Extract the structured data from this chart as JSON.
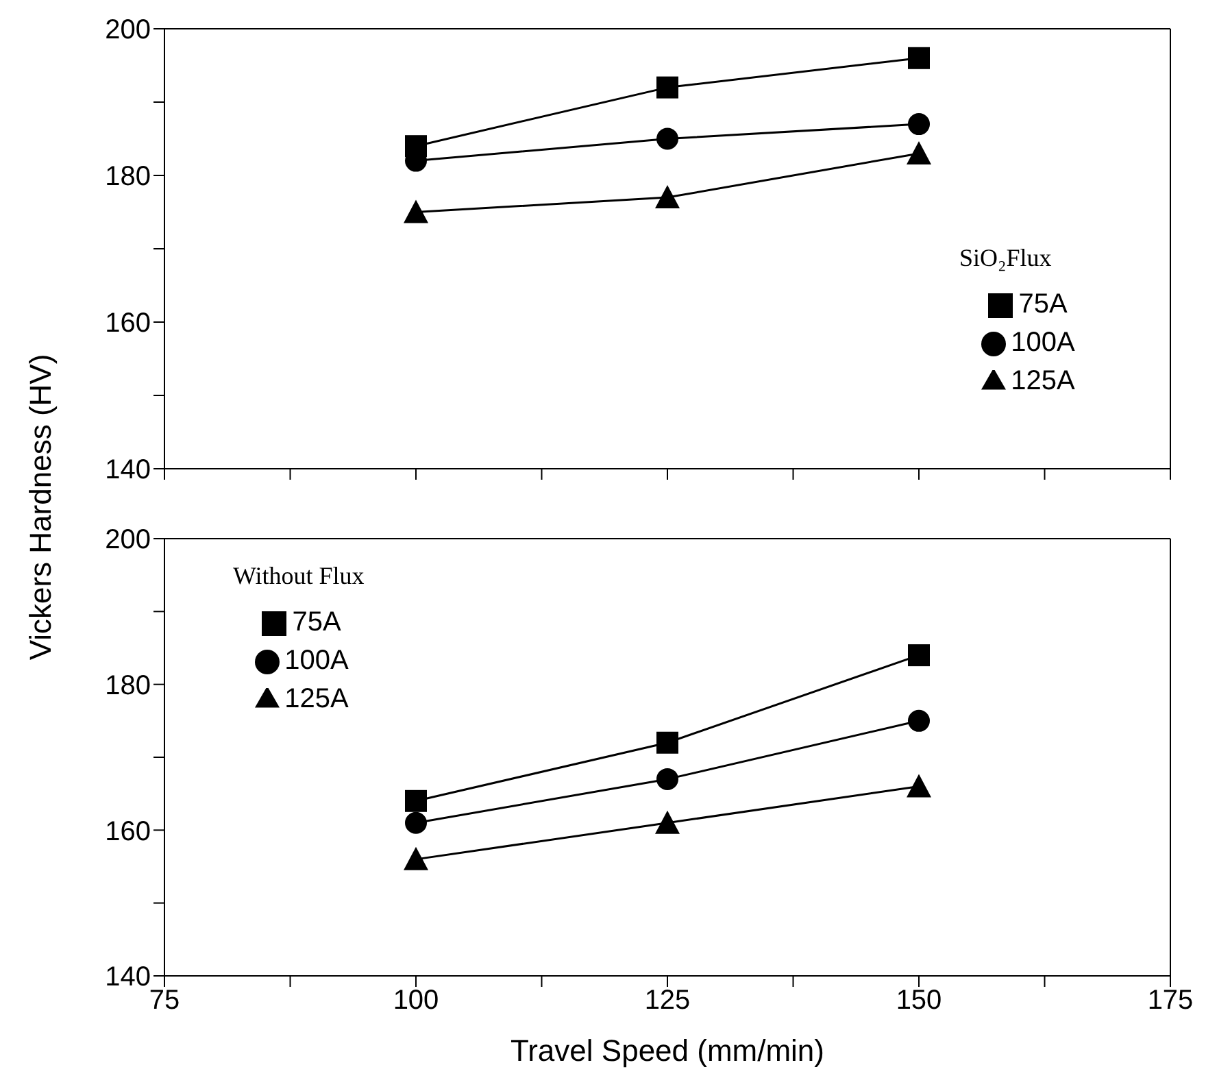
{
  "chart_data": [
    {
      "type": "line",
      "ylabel": "Vickers Hardness (HV)",
      "legend_title": "SiO₂Flux",
      "legend": "bottom right",
      "tick_labels": "y",
      "grid": false,
      "x": [
        100,
        125,
        150
      ],
      "xlim": [
        75,
        175
      ],
      "xticks": [
        75,
        {
          "value": 87.5,
          "label": null
        },
        100,
        {
          "value": 112.5,
          "label": null
        },
        125,
        {
          "value": 137.5,
          "label": null
        },
        150,
        {
          "value": 162.5,
          "label": null
        },
        175
      ],
      "ylim": [
        140,
        200
      ],
      "yticks": [
        140,
        {
          "value": 150,
          "label": null
        },
        160,
        {
          "value": 170,
          "label": null
        },
        180,
        {
          "value": 190,
          "label": null
        },
        200
      ],
      "series": [
        {
          "name": "75A",
          "color": "#000000",
          "marker": "square",
          "values": [
            184,
            192,
            196
          ]
        },
        {
          "name": "100A",
          "color": "#000000",
          "marker": "circle",
          "values": [
            182,
            185,
            187
          ]
        },
        {
          "name": "125A",
          "color": "#000000",
          "marker": "triangle",
          "values": [
            175,
            177,
            183
          ]
        }
      ]
    },
    {
      "type": "line",
      "xlabel": "Travel Speed (mm/min)",
      "legend_title": "Without Flux",
      "legend": "top left",
      "grid": false,
      "x": [
        100,
        125,
        150
      ],
      "xlim": [
        75,
        175
      ],
      "xticks": [
        75,
        {
          "value": 87.5,
          "label": null
        },
        100,
        {
          "value": 112.5,
          "label": null
        },
        125,
        {
          "value": 137.5,
          "label": null
        },
        150,
        {
          "value": 162.5,
          "label": null
        },
        175
      ],
      "ylim": [
        140,
        200
      ],
      "yticks": [
        140,
        {
          "value": 150,
          "label": null
        },
        160,
        {
          "value": 170,
          "label": null
        },
        180,
        {
          "value": 190,
          "label": null
        },
        200
      ],
      "series": [
        {
          "name": "75A",
          "color": "#000000",
          "marker": "square",
          "values": [
            164,
            172,
            184
          ]
        },
        {
          "name": "100A",
          "color": "#000000",
          "marker": "circle",
          "values": [
            161,
            167,
            175
          ]
        },
        {
          "name": "125A",
          "color": "#000000",
          "marker": "triangle",
          "values": [
            156,
            161,
            166
          ]
        }
      ]
    }
  ]
}
